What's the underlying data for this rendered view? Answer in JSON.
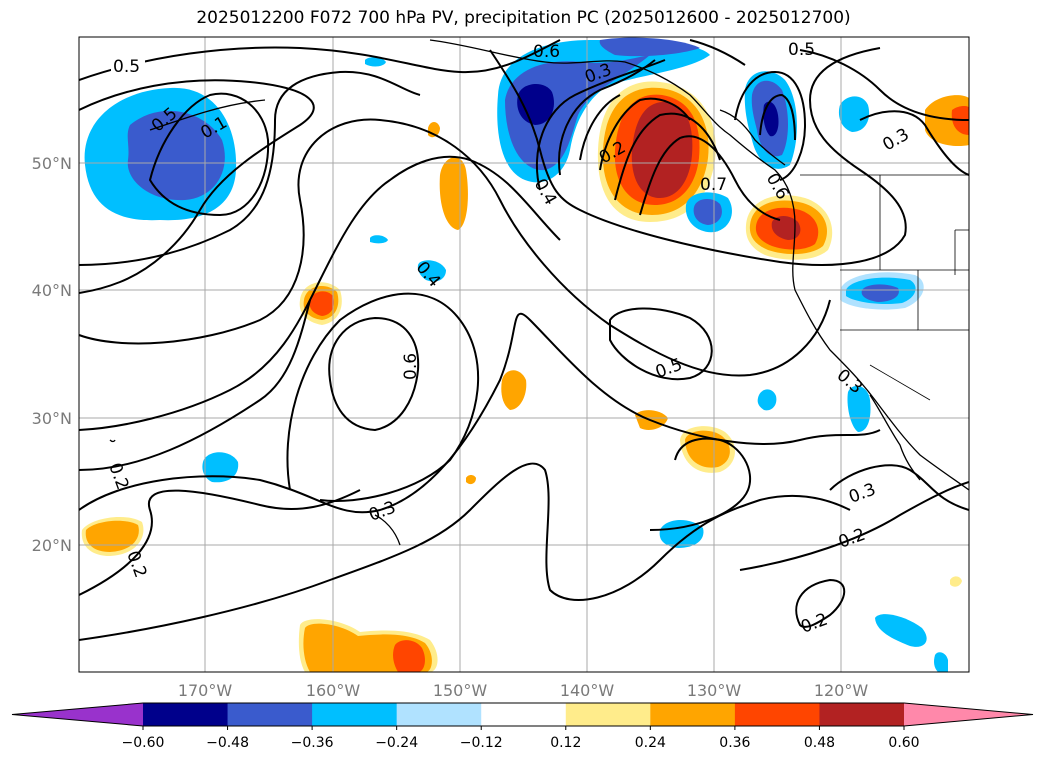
{
  "title": "2025012200 F072 700 hPa PV, precipitation PC (2025012600 - 2025012700)",
  "map": {
    "lon_labels": [
      "170°W",
      "160°W",
      "150°W",
      "140°W",
      "130°W",
      "120°W"
    ],
    "lat_labels": [
      "50°N",
      "40°N",
      "30°N",
      "20°N"
    ],
    "contour_labels": [
      "0.5",
      "0.5",
      "0.1",
      "0.6",
      "0.3",
      "0.2",
      "0.7",
      "0.4",
      "0.5",
      "0.6",
      "0.3",
      "0.4",
      "0.6",
      "0.5",
      "0.3",
      "0.3",
      "0.2",
      "0.2",
      "0.2",
      "0.3",
      "0.2"
    ]
  },
  "colorbar": {
    "ticks": [
      "−0.60",
      "−0.48",
      "−0.36",
      "−0.24",
      "−0.12",
      "0.12",
      "0.24",
      "0.36",
      "0.48",
      "0.60"
    ],
    "colors": [
      "#9932cc",
      "#00008b",
      "#3a5bcd",
      "#00bfff",
      "#b0e2ff",
      "#ffffff",
      "#ffec8b",
      "#ffa500",
      "#ff4500",
      "#b22222",
      "#ff88aa"
    ]
  }
}
